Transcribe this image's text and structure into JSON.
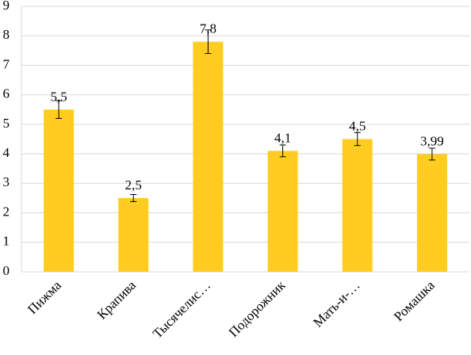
{
  "chart_data": {
    "type": "bar",
    "categories": [
      "Пижма",
      "Крапива",
      "Тысячелис…",
      "Подорожник",
      "Мать-и-…",
      "Ромашка"
    ],
    "values": [
      5.5,
      2.5,
      7.8,
      4.1,
      4.5,
      3.99
    ],
    "value_labels": [
      "5,5",
      "2,5",
      "7,8",
      "4,1",
      "4,5",
      "3,99"
    ],
    "errors": [
      0.3,
      0.12,
      0.4,
      0.2,
      0.22,
      0.2
    ],
    "color": "#ffcc1f",
    "ylim": [
      0,
      9
    ],
    "yticks": [
      0,
      1,
      2,
      3,
      4,
      5,
      6,
      7,
      8,
      9
    ],
    "grid": true
  }
}
